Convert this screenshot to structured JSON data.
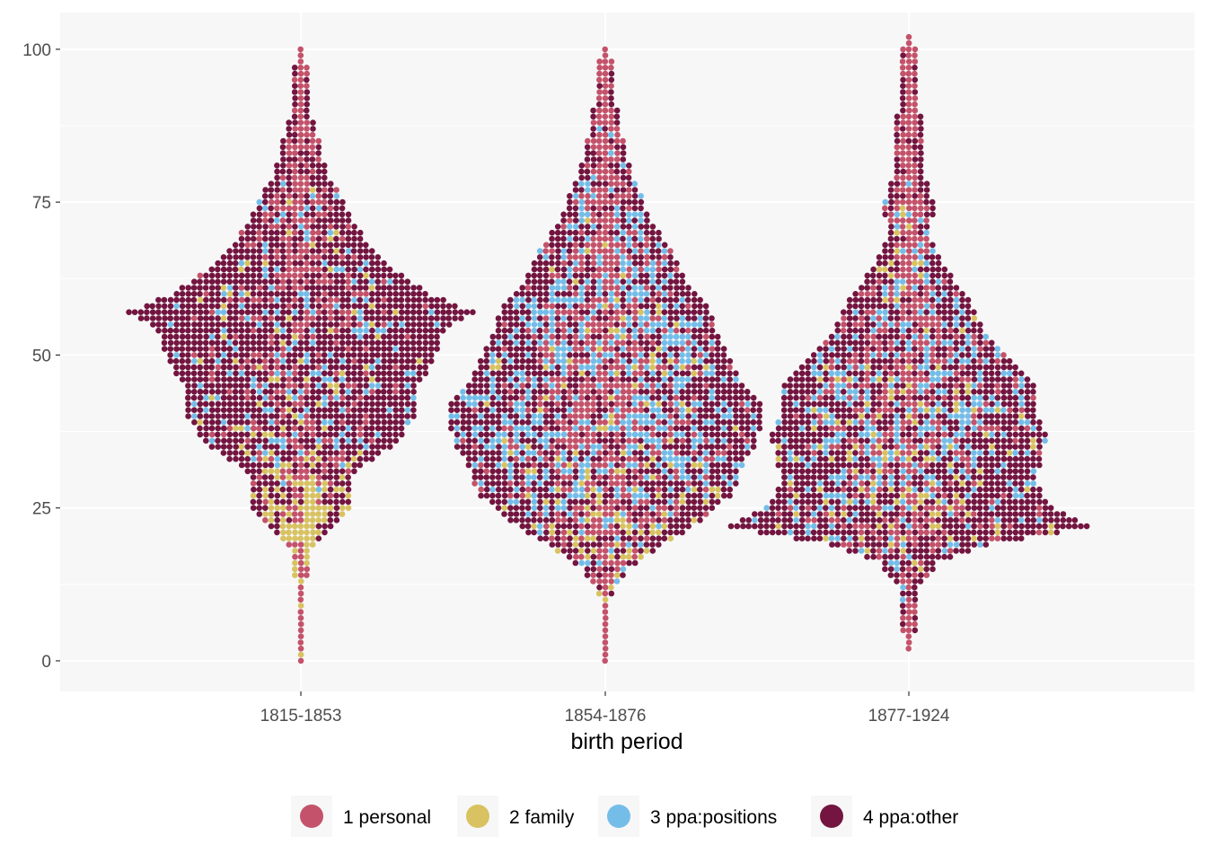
{
  "chart_data": {
    "type": "scatter",
    "subtype": "beeswarm",
    "title": "",
    "xlabel": "birth period",
    "ylabel": "",
    "categories": [
      "1815-1853",
      "1854-1876",
      "1877-1924"
    ],
    "ylim": [
      -5,
      106
    ],
    "yticks": [
      0,
      25,
      50,
      75,
      100
    ],
    "grid": true,
    "legend_position": "bottom",
    "colors": {
      "panel_background": "#f7f7f7",
      "grid": "#ffffff",
      "tick_text": "#4d4d4d"
    },
    "series": [
      {
        "name": "1 personal",
        "color": "#c4526a"
      },
      {
        "name": "2 family",
        "color": "#d8c261"
      },
      {
        "name": "3 ppa:positions",
        "color": "#74bde9"
      },
      {
        "name": "4 ppa:other",
        "color": "#731540"
      }
    ],
    "distribution": [
      {
        "category": "1815-1853",
        "stats": {
          "y_min": 0,
          "y_max": 100,
          "densest_age": 57
        },
        "profile": [
          {
            "y": 0,
            "half_width": 0.1
          },
          {
            "y": 12,
            "half_width": 0.1
          },
          {
            "y": 18,
            "half_width": 0.3
          },
          {
            "y": 22,
            "half_width": 1.6
          },
          {
            "y": 26,
            "half_width": 2.6
          },
          {
            "y": 30,
            "half_width": 2.6
          },
          {
            "y": 33,
            "half_width": 3.6
          },
          {
            "y": 36,
            "half_width": 5.0
          },
          {
            "y": 40,
            "half_width": 5.8
          },
          {
            "y": 45,
            "half_width": 6.0
          },
          {
            "y": 50,
            "half_width": 7.0
          },
          {
            "y": 54,
            "half_width": 7.4
          },
          {
            "y": 57,
            "half_width": 9.0
          },
          {
            "y": 60,
            "half_width": 6.5
          },
          {
            "y": 64,
            "half_width": 4.8
          },
          {
            "y": 68,
            "half_width": 3.4
          },
          {
            "y": 72,
            "half_width": 2.6
          },
          {
            "y": 76,
            "half_width": 2.0
          },
          {
            "y": 80,
            "half_width": 1.2
          },
          {
            "y": 85,
            "half_width": 0.8
          },
          {
            "y": 90,
            "half_width": 0.3
          },
          {
            "y": 100,
            "half_width": 0.1
          }
        ],
        "bands": [
          {
            "y": 0,
            "personal": 0.95,
            "family": 0.05,
            "positions": 0.0,
            "other": 0.0
          },
          {
            "y": 18,
            "personal": 0.3,
            "family": 0.7,
            "positions": 0.0,
            "other": 0.0
          },
          {
            "y": 24,
            "personal": 0.15,
            "family": 0.6,
            "positions": 0.0,
            "other": 0.25
          },
          {
            "y": 30,
            "personal": 0.15,
            "family": 0.4,
            "positions": 0.05,
            "other": 0.4
          },
          {
            "y": 36,
            "personal": 0.12,
            "family": 0.1,
            "positions": 0.12,
            "other": 0.66
          },
          {
            "y": 45,
            "personal": 0.1,
            "family": 0.06,
            "positions": 0.12,
            "other": 0.72
          },
          {
            "y": 55,
            "personal": 0.1,
            "family": 0.04,
            "positions": 0.1,
            "other": 0.76
          },
          {
            "y": 65,
            "personal": 0.2,
            "family": 0.04,
            "positions": 0.1,
            "other": 0.66
          },
          {
            "y": 75,
            "personal": 0.32,
            "family": 0.03,
            "positions": 0.12,
            "other": 0.53
          },
          {
            "y": 82,
            "personal": 0.55,
            "family": 0.05,
            "positions": 0.0,
            "other": 0.4
          },
          {
            "y": 90,
            "personal": 0.85,
            "family": 0.0,
            "positions": 0.0,
            "other": 0.15
          },
          {
            "y": 100,
            "personal": 1.0,
            "family": 0.0,
            "positions": 0.0,
            "other": 0.0
          }
        ]
      },
      {
        "category": "1854-1876",
        "stats": {
          "y_min": 0,
          "y_max": 100,
          "densest_age": 40
        },
        "profile": [
          {
            "y": 0,
            "half_width": 0.1
          },
          {
            "y": 10,
            "half_width": 0.1
          },
          {
            "y": 15,
            "half_width": 1.0
          },
          {
            "y": 19,
            "half_width": 2.8
          },
          {
            "y": 23,
            "half_width": 5.0
          },
          {
            "y": 27,
            "half_width": 6.4
          },
          {
            "y": 31,
            "half_width": 7.0
          },
          {
            "y": 36,
            "half_width": 7.8
          },
          {
            "y": 41,
            "half_width": 8.2
          },
          {
            "y": 46,
            "half_width": 7.0
          },
          {
            "y": 52,
            "half_width": 6.0
          },
          {
            "y": 57,
            "half_width": 5.4
          },
          {
            "y": 62,
            "half_width": 4.2
          },
          {
            "y": 67,
            "half_width": 3.4
          },
          {
            "y": 72,
            "half_width": 2.2
          },
          {
            "y": 77,
            "half_width": 1.6
          },
          {
            "y": 82,
            "half_width": 1.0
          },
          {
            "y": 88,
            "half_width": 0.6
          },
          {
            "y": 93,
            "half_width": 0.3
          },
          {
            "y": 100,
            "half_width": 0.1
          }
        ],
        "bands": [
          {
            "y": 0,
            "personal": 1.0,
            "family": 0.0,
            "positions": 0.0,
            "other": 0.0
          },
          {
            "y": 16,
            "personal": 0.35,
            "family": 0.25,
            "positions": 0.05,
            "other": 0.35
          },
          {
            "y": 22,
            "personal": 0.22,
            "family": 0.14,
            "positions": 0.12,
            "other": 0.52
          },
          {
            "y": 30,
            "personal": 0.2,
            "family": 0.1,
            "positions": 0.3,
            "other": 0.4
          },
          {
            "y": 40,
            "personal": 0.2,
            "family": 0.07,
            "positions": 0.35,
            "other": 0.38
          },
          {
            "y": 50,
            "personal": 0.2,
            "family": 0.05,
            "positions": 0.32,
            "other": 0.43
          },
          {
            "y": 62,
            "personal": 0.3,
            "family": 0.04,
            "positions": 0.28,
            "other": 0.38
          },
          {
            "y": 72,
            "personal": 0.45,
            "family": 0.02,
            "positions": 0.22,
            "other": 0.31
          },
          {
            "y": 85,
            "personal": 0.7,
            "family": 0.0,
            "positions": 0.05,
            "other": 0.25
          },
          {
            "y": 100,
            "personal": 1.0,
            "family": 0.0,
            "positions": 0.0,
            "other": 0.0
          }
        ]
      },
      {
        "category": "1877-1924",
        "stats": {
          "y_min": 2,
          "y_max": 102,
          "densest_age": 22
        },
        "profile": [
          {
            "y": 2,
            "half_width": 0.1
          },
          {
            "y": 12,
            "half_width": 0.3
          },
          {
            "y": 16,
            "half_width": 1.4
          },
          {
            "y": 19,
            "half_width": 4.2
          },
          {
            "y": 22,
            "half_width": 9.4
          },
          {
            "y": 25,
            "half_width": 7.6
          },
          {
            "y": 29,
            "half_width": 6.4
          },
          {
            "y": 33,
            "half_width": 6.8
          },
          {
            "y": 37,
            "half_width": 7.2
          },
          {
            "y": 41,
            "half_width": 6.4
          },
          {
            "y": 45,
            "half_width": 6.4
          },
          {
            "y": 50,
            "half_width": 5.0
          },
          {
            "y": 55,
            "half_width": 3.6
          },
          {
            "y": 60,
            "half_width": 2.8
          },
          {
            "y": 65,
            "half_width": 1.6
          },
          {
            "y": 70,
            "half_width": 0.8
          },
          {
            "y": 74,
            "half_width": 1.2
          },
          {
            "y": 80,
            "half_width": 0.6
          },
          {
            "y": 86,
            "half_width": 0.6
          },
          {
            "y": 92,
            "half_width": 0.4
          },
          {
            "y": 102,
            "half_width": 0.1
          }
        ],
        "bands": [
          {
            "y": 2,
            "personal": 1.0,
            "family": 0.0,
            "positions": 0.0,
            "other": 0.0
          },
          {
            "y": 16,
            "personal": 0.25,
            "family": 0.08,
            "positions": 0.12,
            "other": 0.55
          },
          {
            "y": 22,
            "personal": 0.15,
            "family": 0.08,
            "positions": 0.12,
            "other": 0.65
          },
          {
            "y": 30,
            "personal": 0.15,
            "family": 0.1,
            "positions": 0.25,
            "other": 0.5
          },
          {
            "y": 40,
            "personal": 0.2,
            "family": 0.08,
            "positions": 0.3,
            "other": 0.42
          },
          {
            "y": 50,
            "personal": 0.25,
            "family": 0.06,
            "positions": 0.25,
            "other": 0.44
          },
          {
            "y": 60,
            "personal": 0.28,
            "family": 0.04,
            "positions": 0.22,
            "other": 0.46
          },
          {
            "y": 70,
            "personal": 0.5,
            "family": 0.08,
            "positions": 0.22,
            "other": 0.2
          },
          {
            "y": 80,
            "personal": 0.75,
            "family": 0.0,
            "positions": 0.0,
            "other": 0.25
          },
          {
            "y": 102,
            "personal": 1.0,
            "family": 0.0,
            "positions": 0.0,
            "other": 0.0
          }
        ]
      }
    ]
  }
}
